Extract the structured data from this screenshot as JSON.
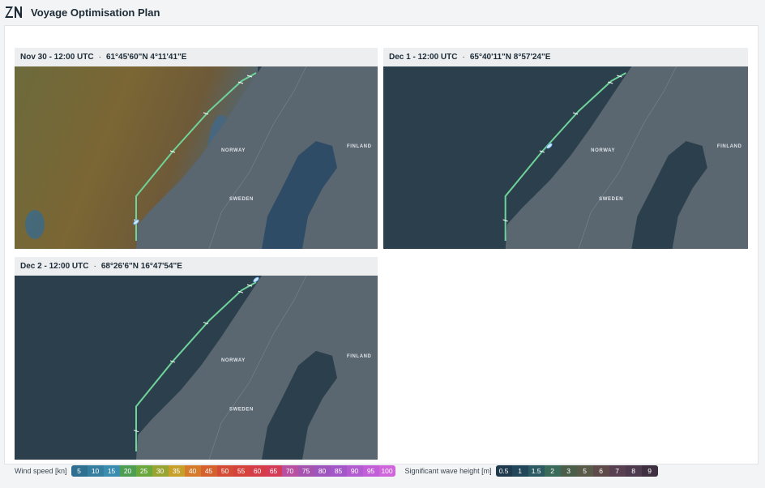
{
  "header": {
    "title": "Voyage Optimisation Plan"
  },
  "separator": "·",
  "map_labels": [
    "NORWAY",
    "SWEDEN",
    "FINLAND"
  ],
  "panels": [
    {
      "time": "Nov 30 - 12:00 UTC",
      "position": "61°45'60\"N 4°11'41\"E"
    },
    {
      "time": "Dec 1 - 12:00 UTC",
      "position": "65°40'11\"N 8°57'24\"E"
    },
    {
      "time": "Dec 2 - 12:00 UTC",
      "position": "68°26'6\"N 16°47'54\"E"
    }
  ],
  "legend": {
    "wind": {
      "label": "Wind speed [kn]",
      "values": [
        5,
        10,
        15,
        20,
        25,
        30,
        35,
        40,
        45,
        50,
        55,
        60,
        65,
        70,
        75,
        80,
        85,
        90,
        95,
        100
      ]
    },
    "wave": {
      "label": "Significant wave height [m]",
      "values": [
        0.5,
        1,
        1.5,
        2,
        3,
        5,
        6,
        7,
        8,
        9
      ]
    }
  }
}
